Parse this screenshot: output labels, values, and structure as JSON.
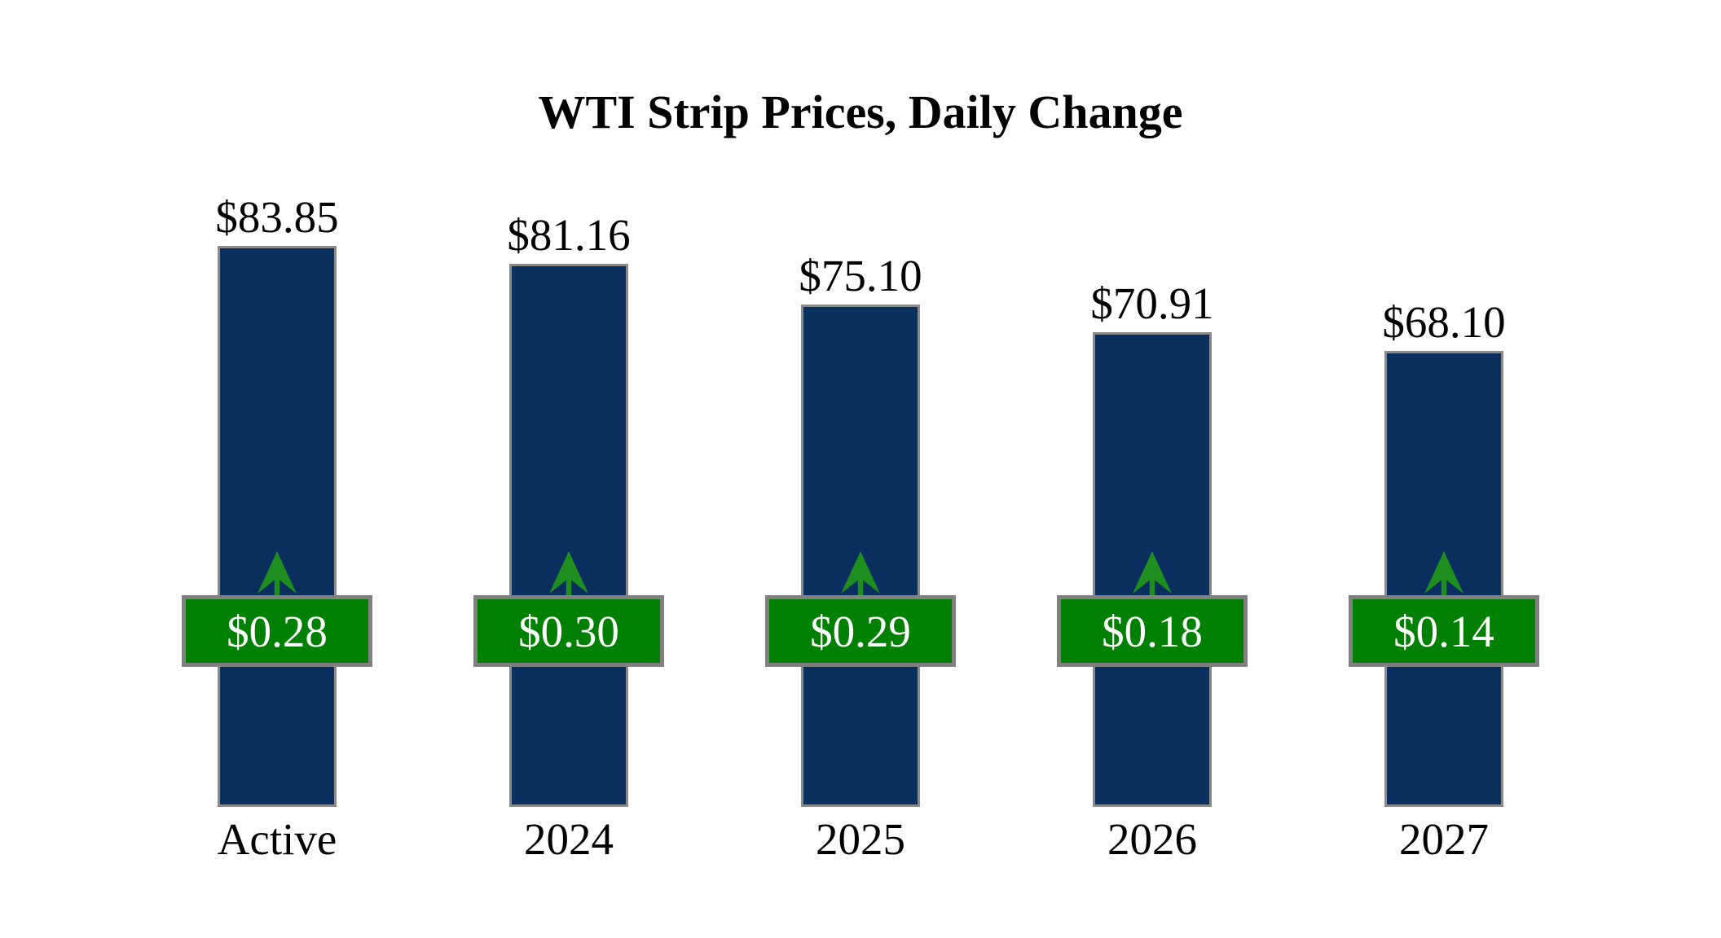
{
  "chart_data": {
    "type": "bar",
    "title": "WTI Strip Prices, Daily Change",
    "categories": [
      "Active",
      "2024",
      "2025",
      "2026",
      "2027"
    ],
    "series": [
      {
        "name": "Strip Price",
        "values": [
          83.85,
          81.16,
          75.1,
          70.91,
          68.1
        ]
      },
      {
        "name": "Daily Change",
        "values": [
          0.28,
          0.3,
          0.29,
          0.18,
          0.14
        ]
      }
    ],
    "value_labels": [
      "$83.85",
      "$81.16",
      "$75.10",
      "$70.91",
      "$68.10"
    ],
    "change_labels": [
      "$0.28",
      "$0.30",
      "$0.29",
      "$0.18",
      "$0.14"
    ],
    "change_direction": "up",
    "xlabel": "",
    "ylabel": "",
    "ylim": [
      0,
      84
    ],
    "grid": false,
    "legend": "none",
    "colors": {
      "background": "#ffffff",
      "bar_fill": "#0a2f5e",
      "bar_border": "#8a8a8a",
      "badge_fill": "#008000",
      "badge_border": "#808080",
      "badge_text": "#ffffff",
      "arrow": "#1e8f1e",
      "label_text": "#000000"
    }
  }
}
